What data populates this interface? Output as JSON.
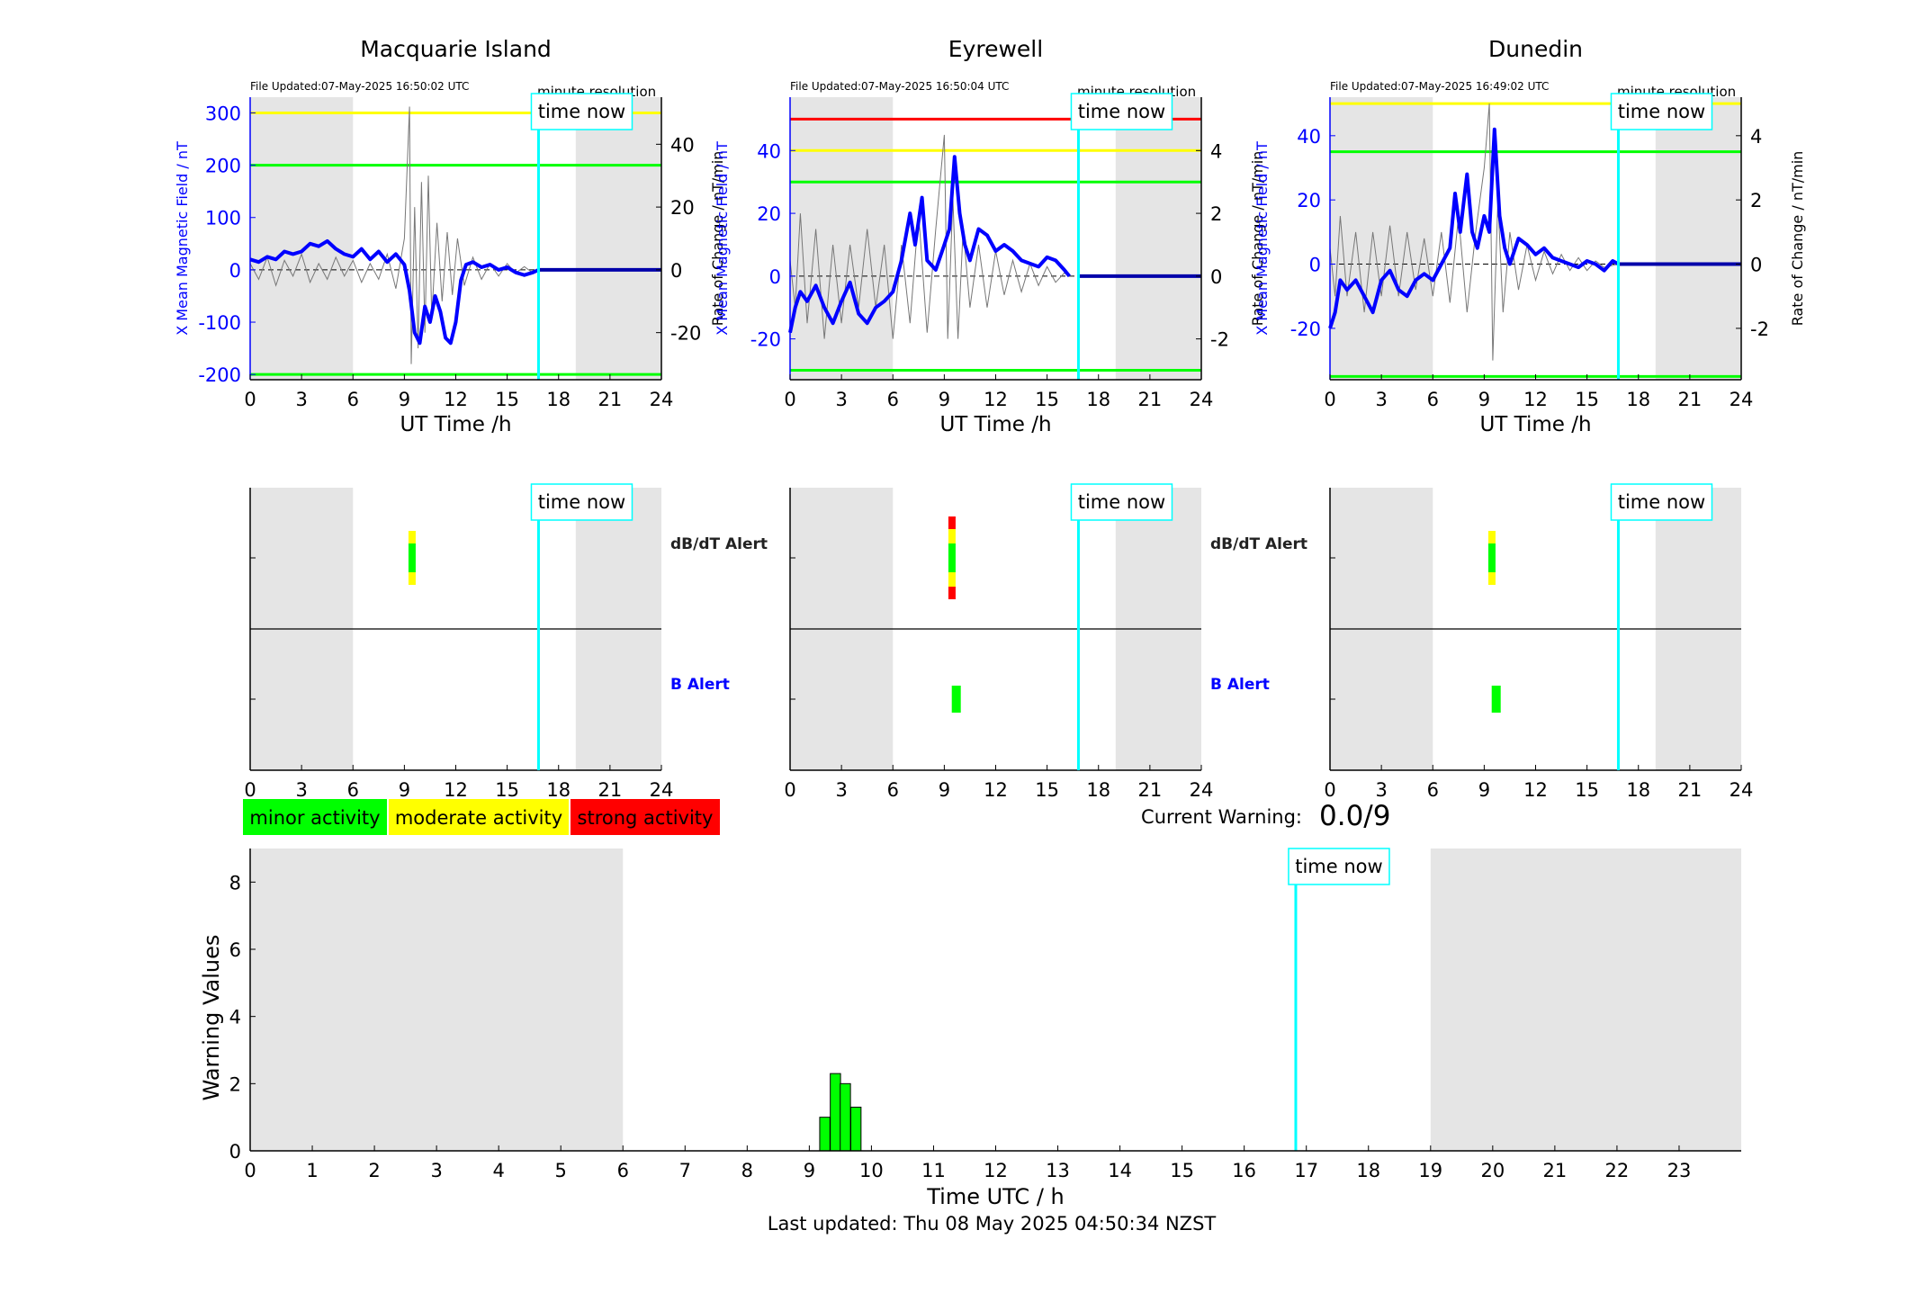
{
  "colors": {
    "blue": "#0000ff",
    "navy": "#0000aa",
    "cyan": "#00ffff",
    "green": "#00ff00",
    "yellow": "#ffff00",
    "red": "#ff0000",
    "shade": "#e5e5e5",
    "gray": "#777777"
  },
  "common": {
    "time_now_label": "time now",
    "minute_resolution": "minute resolution",
    "x_axis_label": "UT Time /h",
    "xticks": [
      0,
      3,
      6,
      9,
      12,
      15,
      18,
      21,
      24
    ],
    "shaded_hours": [
      [
        0,
        6
      ],
      [
        19,
        24
      ]
    ],
    "time_now_hour": 16.83
  },
  "stations": [
    {
      "name": "Macquarie Island",
      "file_updated": "File Updated:07-May-2025 16:50:02 UTC",
      "left_ylabel": "X Mean Magnetic Field / nT",
      "right_ylabel": "Rate of Change / nT/min",
      "left_ylim": [
        -210,
        330
      ],
      "left_ticks": [
        -200,
        -100,
        0,
        100,
        200,
        300
      ],
      "right_ylim": [
        -35,
        55
      ],
      "right_ticks": [
        -20,
        0,
        20,
        40
      ],
      "thresholds": [
        {
          "value": 300,
          "color": "yellow"
        },
        {
          "value": 200,
          "color": "green"
        },
        {
          "value": -200,
          "color": "green"
        }
      ],
      "mean_field": [
        [
          0,
          20
        ],
        [
          0.5,
          15
        ],
        [
          1,
          25
        ],
        [
          1.5,
          20
        ],
        [
          2,
          35
        ],
        [
          2.5,
          30
        ],
        [
          3,
          35
        ],
        [
          3.5,
          50
        ],
        [
          4,
          45
        ],
        [
          4.5,
          55
        ],
        [
          5,
          40
        ],
        [
          5.5,
          30
        ],
        [
          6,
          25
        ],
        [
          6.5,
          40
        ],
        [
          7,
          20
        ],
        [
          7.5,
          35
        ],
        [
          8,
          15
        ],
        [
          8.5,
          30
        ],
        [
          9,
          10
        ],
        [
          9.3,
          -40
        ],
        [
          9.6,
          -120
        ],
        [
          9.9,
          -140
        ],
        [
          10.2,
          -70
        ],
        [
          10.5,
          -100
        ],
        [
          10.8,
          -50
        ],
        [
          11.1,
          -80
        ],
        [
          11.4,
          -130
        ],
        [
          11.7,
          -140
        ],
        [
          12,
          -100
        ],
        [
          12.3,
          -20
        ],
        [
          12.6,
          10
        ],
        [
          13,
          15
        ],
        [
          13.5,
          5
        ],
        [
          14,
          10
        ],
        [
          14.5,
          0
        ],
        [
          15,
          5
        ],
        [
          15.5,
          -5
        ],
        [
          16,
          -10
        ],
        [
          16.5,
          -5
        ],
        [
          16.83,
          0
        ],
        [
          24,
          0
        ]
      ],
      "rate_of_change": [
        [
          0,
          2
        ],
        [
          0.5,
          -3
        ],
        [
          1,
          4
        ],
        [
          1.5,
          -5
        ],
        [
          2,
          3
        ],
        [
          2.5,
          -2
        ],
        [
          3,
          5
        ],
        [
          3.5,
          -4
        ],
        [
          4,
          2
        ],
        [
          4.5,
          -3
        ],
        [
          5,
          4
        ],
        [
          5.5,
          -2
        ],
        [
          6,
          3
        ],
        [
          6.5,
          -4
        ],
        [
          7,
          2
        ],
        [
          7.5,
          -3
        ],
        [
          8,
          5
        ],
        [
          8.5,
          -6
        ],
        [
          9,
          10
        ],
        [
          9.3,
          52
        ],
        [
          9.4,
          -30
        ],
        [
          9.6,
          20
        ],
        [
          9.8,
          -25
        ],
        [
          10,
          28
        ],
        [
          10.2,
          -20
        ],
        [
          10.4,
          30
        ],
        [
          10.6,
          -15
        ],
        [
          10.9,
          15
        ],
        [
          11.2,
          -10
        ],
        [
          11.5,
          12
        ],
        [
          11.8,
          -8
        ],
        [
          12.1,
          10
        ],
        [
          12.5,
          -5
        ],
        [
          13,
          4
        ],
        [
          13.5,
          -3
        ],
        [
          14,
          2
        ],
        [
          14.5,
          -2
        ],
        [
          15,
          2
        ],
        [
          15.5,
          -1
        ],
        [
          16,
          1
        ],
        [
          16.5,
          -1
        ],
        [
          16.83,
          0
        ]
      ],
      "db_dt_alert": {
        "hour": 9.45,
        "levels": [
          "yellow",
          "green",
          "yellow"
        ]
      },
      "b_alert": null
    },
    {
      "name": "Eyrewell",
      "file_updated": "File Updated:07-May-2025 16:50:04 UTC",
      "left_ylabel": "X Mean Magnetic Field / nT",
      "right_ylabel": "Rate of Change / nT/min",
      "left_ylim": [
        -33,
        57
      ],
      "left_ticks": [
        -20,
        0,
        20,
        40
      ],
      "right_ylim": [
        -3.3,
        5.7
      ],
      "right_ticks": [
        -2,
        0,
        2,
        4
      ],
      "thresholds": [
        {
          "value": 50,
          "color": "red"
        },
        {
          "value": 40,
          "color": "yellow"
        },
        {
          "value": 30,
          "color": "green"
        },
        {
          "value": -30,
          "color": "green"
        }
      ],
      "mean_field": [
        [
          0,
          -18
        ],
        [
          0.3,
          -10
        ],
        [
          0.6,
          -5
        ],
        [
          1,
          -8
        ],
        [
          1.5,
          -3
        ],
        [
          2,
          -10
        ],
        [
          2.5,
          -15
        ],
        [
          3,
          -8
        ],
        [
          3.5,
          -2
        ],
        [
          4,
          -12
        ],
        [
          4.5,
          -15
        ],
        [
          5,
          -10
        ],
        [
          5.5,
          -8
        ],
        [
          6,
          -5
        ],
        [
          6.5,
          5
        ],
        [
          7,
          20
        ],
        [
          7.3,
          10
        ],
        [
          7.7,
          25
        ],
        [
          8,
          5
        ],
        [
          8.5,
          2
        ],
        [
          9,
          10
        ],
        [
          9.3,
          15
        ],
        [
          9.6,
          38
        ],
        [
          9.9,
          20
        ],
        [
          10.2,
          10
        ],
        [
          10.5,
          5
        ],
        [
          11,
          15
        ],
        [
          11.5,
          13
        ],
        [
          12,
          8
        ],
        [
          12.5,
          10
        ],
        [
          13,
          8
        ],
        [
          13.5,
          5
        ],
        [
          14,
          4
        ],
        [
          14.5,
          3
        ],
        [
          15,
          6
        ],
        [
          15.5,
          5
        ],
        [
          16,
          2
        ],
        [
          16.3,
          0
        ],
        [
          24,
          0
        ]
      ],
      "rate_of_change": [
        [
          0,
          0.5
        ],
        [
          0.3,
          -1
        ],
        [
          0.6,
          2
        ],
        [
          1,
          -1.5
        ],
        [
          1.5,
          1.5
        ],
        [
          2,
          -2
        ],
        [
          2.5,
          1
        ],
        [
          3,
          -1.5
        ],
        [
          3.5,
          1
        ],
        [
          4,
          -1
        ],
        [
          4.5,
          1.5
        ],
        [
          5,
          -1
        ],
        [
          5.5,
          1
        ],
        [
          6,
          -2
        ],
        [
          6.5,
          1
        ],
        [
          7,
          -1.5
        ],
        [
          7.5,
          2
        ],
        [
          8,
          -1.8
        ],
        [
          8.5,
          1.5
        ],
        [
          9,
          4.5
        ],
        [
          9.2,
          -2
        ],
        [
          9.5,
          2.5
        ],
        [
          9.8,
          -2
        ],
        [
          10.1,
          1.5
        ],
        [
          10.5,
          -1
        ],
        [
          11,
          1
        ],
        [
          11.5,
          -1
        ],
        [
          12,
          0.8
        ],
        [
          12.5,
          -0.6
        ],
        [
          13,
          0.5
        ],
        [
          13.5,
          -0.5
        ],
        [
          14,
          0.4
        ],
        [
          14.5,
          -0.3
        ],
        [
          15,
          0.3
        ],
        [
          15.5,
          -0.2
        ],
        [
          16,
          0.1
        ],
        [
          16.3,
          0
        ]
      ],
      "db_dt_alert": {
        "hour": 9.45,
        "levels": [
          "red",
          "yellow",
          "green",
          "yellow",
          "red"
        ]
      },
      "b_alert": {
        "hour": 9.7,
        "level": "green"
      }
    },
    {
      "name": "Dunedin",
      "file_updated": "File Updated:07-May-2025 16:49:02 UTC",
      "left_ylabel": "X Mean Magnetic Field / nT",
      "right_ylabel": "Rate of Change / nT/min",
      "left_ylim": [
        -36,
        52
      ],
      "left_ticks": [
        -20,
        0,
        20,
        40
      ],
      "right_ylim": [
        -3.6,
        5.2
      ],
      "right_ticks": [
        -2,
        0,
        2,
        4
      ],
      "thresholds": [
        {
          "value": 50,
          "color": "yellow"
        },
        {
          "value": 35,
          "color": "green"
        },
        {
          "value": -35,
          "color": "green"
        }
      ],
      "mean_field": [
        [
          0,
          -20
        ],
        [
          0.3,
          -15
        ],
        [
          0.6,
          -5
        ],
        [
          1,
          -8
        ],
        [
          1.5,
          -5
        ],
        [
          2,
          -10
        ],
        [
          2.5,
          -15
        ],
        [
          3,
          -5
        ],
        [
          3.5,
          -2
        ],
        [
          4,
          -8
        ],
        [
          4.5,
          -10
        ],
        [
          5,
          -5
        ],
        [
          5.5,
          -3
        ],
        [
          6,
          -5
        ],
        [
          6.5,
          0
        ],
        [
          7,
          5
        ],
        [
          7.3,
          22
        ],
        [
          7.6,
          10
        ],
        [
          8,
          28
        ],
        [
          8.3,
          10
        ],
        [
          8.6,
          5
        ],
        [
          9,
          15
        ],
        [
          9.3,
          10
        ],
        [
          9.6,
          42
        ],
        [
          9.9,
          15
        ],
        [
          10.2,
          5
        ],
        [
          10.5,
          0
        ],
        [
          11,
          8
        ],
        [
          11.5,
          6
        ],
        [
          12,
          3
        ],
        [
          12.5,
          5
        ],
        [
          13,
          2
        ],
        [
          13.5,
          1
        ],
        [
          14,
          0
        ],
        [
          14.5,
          -1
        ],
        [
          15,
          1
        ],
        [
          15.5,
          0
        ],
        [
          16,
          -2
        ],
        [
          16.5,
          1
        ],
        [
          16.83,
          0
        ],
        [
          24,
          0
        ]
      ],
      "rate_of_change": [
        [
          0,
          0.5
        ],
        [
          0.3,
          -1
        ],
        [
          0.6,
          1.5
        ],
        [
          1,
          -1
        ],
        [
          1.5,
          1
        ],
        [
          2,
          -1.5
        ],
        [
          2.5,
          1
        ],
        [
          3,
          -1
        ],
        [
          3.5,
          1.2
        ],
        [
          4,
          -1
        ],
        [
          4.5,
          1
        ],
        [
          5,
          -0.8
        ],
        [
          5.5,
          0.8
        ],
        [
          6,
          -1
        ],
        [
          6.5,
          1
        ],
        [
          7,
          -1.2
        ],
        [
          7.5,
          1.5
        ],
        [
          8,
          -1.5
        ],
        [
          8.5,
          1
        ],
        [
          9,
          3
        ],
        [
          9.3,
          5
        ],
        [
          9.5,
          -3
        ],
        [
          9.8,
          2
        ],
        [
          10.1,
          -1.5
        ],
        [
          10.5,
          1
        ],
        [
          11,
          -0.8
        ],
        [
          11.5,
          0.6
        ],
        [
          12,
          -0.5
        ],
        [
          12.5,
          0.4
        ],
        [
          13,
          -0.3
        ],
        [
          13.5,
          0.3
        ],
        [
          14,
          -0.2
        ],
        [
          14.5,
          0.2
        ],
        [
          15,
          -0.2
        ],
        [
          15.5,
          0.1
        ],
        [
          16,
          -0.1
        ],
        [
          16.83,
          0
        ]
      ],
      "db_dt_alert": {
        "hour": 9.45,
        "levels": [
          "yellow",
          "green",
          "yellow"
        ]
      },
      "b_alert": {
        "hour": 9.7,
        "level": "green"
      }
    }
  ],
  "alert_rows": {
    "db_dt_label": "dB/dT Alert",
    "b_label": "B Alert"
  },
  "legend": [
    {
      "label": "minor activity",
      "color": "green"
    },
    {
      "label": "moderate activity",
      "color": "yellow"
    },
    {
      "label": "strong activity",
      "color": "red"
    }
  ],
  "current_warning": {
    "label": "Current Warning:",
    "value": "0.0/9"
  },
  "chart_data": {
    "type": "bar",
    "title": "",
    "xlabel": "Time UTC / h",
    "ylabel": "Warning Values",
    "xlim": [
      0,
      24
    ],
    "ylim": [
      0,
      9
    ],
    "xticks": [
      0,
      1,
      2,
      3,
      4,
      5,
      6,
      7,
      8,
      9,
      10,
      11,
      12,
      13,
      14,
      15,
      16,
      17,
      18,
      19,
      20,
      21,
      22,
      23
    ],
    "yticks": [
      0,
      2,
      4,
      6,
      8
    ],
    "bars": [
      {
        "x": 9.25,
        "value": 1.0
      },
      {
        "x": 9.42,
        "value": 2.3
      },
      {
        "x": 9.58,
        "value": 2.0
      },
      {
        "x": 9.75,
        "value": 1.3
      }
    ],
    "bar_color": "#00ff00",
    "shaded_hours": [
      [
        0,
        6
      ],
      [
        19,
        24
      ]
    ],
    "time_now_hour": 16.83,
    "time_now_label": "time now"
  },
  "footer": "Last updated: Thu 08 May 2025 04:50:34 NZST"
}
